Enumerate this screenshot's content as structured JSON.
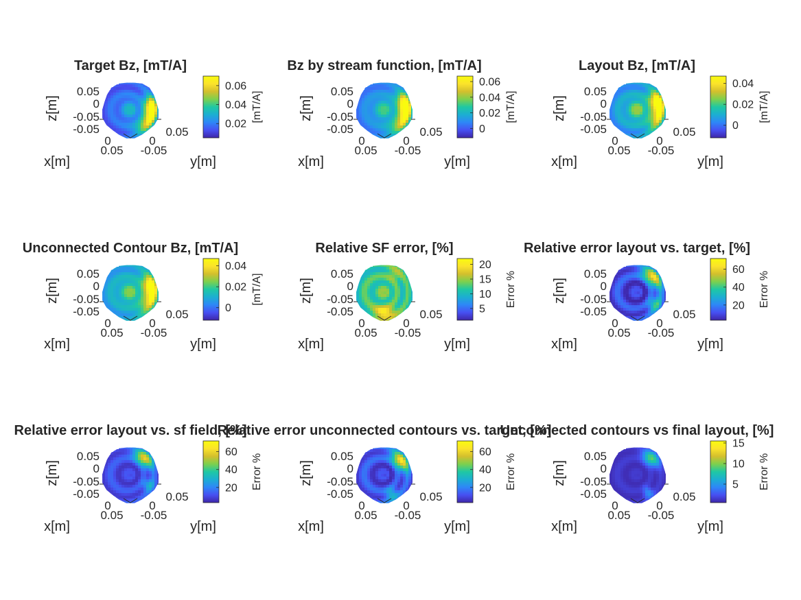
{
  "figure": {
    "background": "#ffffff",
    "colormap": "parula",
    "colormap_stops": [
      "#3e26a8",
      "#4750f2",
      "#2e87f7",
      "#1caed2",
      "#1fc8a3",
      "#7dd04e",
      "#d3bf2d",
      "#fbe32b",
      "#f9fb0e"
    ]
  },
  "chart_data": [
    {
      "type": "heatmap",
      "title": "Target Bz, [mT/A]",
      "xlabel": "x[m]",
      "ylabel": "y[m]",
      "zlabel": "z[m]",
      "x_ticks": [
        "0.05",
        "0",
        "-0.05"
      ],
      "y_ticks": [
        "0",
        "0.05"
      ],
      "z_ticks": [
        "0.05",
        "0",
        "-0.05",
        "-0.05"
      ],
      "colorbar": {
        "label": "[mT/A]",
        "ticks": [
          0.02,
          0.04,
          0.06
        ],
        "tick_labels": [
          "0.02",
          "0.04",
          "0.06"
        ],
        "range": [
          0.005,
          0.07
        ]
      },
      "pattern": {
        "base": 0.16,
        "center": 0.38,
        "bands": [
          {
            "a": 25,
            "l": 0.96,
            "w": 0.55
          },
          {
            "a": -10,
            "l": 0.72,
            "w": 0.3
          }
        ],
        "rings": 0.12
      }
    },
    {
      "type": "heatmap",
      "title": "Bz by stream function, [mT/A]",
      "xlabel": "x[m]",
      "ylabel": "y[m]",
      "zlabel": "z[m]",
      "x_ticks": [
        "0.05",
        "0",
        "-0.05"
      ],
      "y_ticks": [
        "0",
        "0.05"
      ],
      "z_ticks": [
        "0.05",
        "0",
        "-0.05",
        "-0.05"
      ],
      "colorbar": {
        "label": "[mT/A]",
        "ticks": [
          0,
          0.02,
          0.04,
          0.06
        ],
        "tick_labels": [
          "0",
          "0.02",
          "0.04",
          "0.06"
        ],
        "range": [
          -0.012,
          0.067
        ]
      },
      "pattern": {
        "base": 0.24,
        "center": 0.52,
        "bands": [
          {
            "a": 20,
            "l": 0.95,
            "w": 0.6
          },
          {
            "a": -15,
            "l": 0.8,
            "w": 0.35
          }
        ],
        "rings": 0.1
      }
    },
    {
      "type": "heatmap",
      "title": "Layout Bz, [mT/A]",
      "xlabel": "x[m]",
      "ylabel": "y[m]",
      "zlabel": "z[m]",
      "x_ticks": [
        "0.05",
        "0",
        "-0.05"
      ],
      "y_ticks": [
        "0",
        "0.05"
      ],
      "z_ticks": [
        "0.05",
        "0",
        "-0.05",
        "-0.05"
      ],
      "colorbar": {
        "label": "[mT/A]",
        "ticks": [
          0,
          0.02,
          0.04
        ],
        "tick_labels": [
          "0",
          "0.02",
          "0.04"
        ],
        "range": [
          -0.012,
          0.047
        ]
      },
      "pattern": {
        "base": 0.3,
        "center": 0.62,
        "bands": [
          {
            "a": 10,
            "l": 0.98,
            "w": 0.5
          },
          {
            "a": -25,
            "l": 0.85,
            "w": 0.3
          }
        ],
        "rings": 0.14
      }
    },
    {
      "type": "heatmap",
      "title": "Unconnected Contour Bz, [mT/A]",
      "xlabel": "x[m]",
      "ylabel": "y[m]",
      "zlabel": "z[m]",
      "x_ticks": [
        "0.05",
        "0",
        "-0.05"
      ],
      "y_ticks": [
        "0",
        "0.05"
      ],
      "z_ticks": [
        "0.05",
        "0",
        "-0.05",
        "-0.05"
      ],
      "colorbar": {
        "label": "[mT/A]",
        "ticks": [
          0,
          0.02,
          0.04
        ],
        "tick_labels": [
          "0",
          "0.02",
          "0.04"
        ],
        "range": [
          -0.012,
          0.047
        ]
      },
      "pattern": {
        "base": 0.34,
        "center": 0.6,
        "bands": [
          {
            "a": 15,
            "l": 0.95,
            "w": 0.5
          },
          {
            "a": -20,
            "l": 0.85,
            "w": 0.32
          }
        ],
        "rings": 0.12
      }
    },
    {
      "type": "heatmap",
      "title": "Relative SF error, [%]",
      "xlabel": "x[m]",
      "ylabel": "y[m]",
      "zlabel": "z[m]",
      "x_ticks": [
        "0.05",
        "0",
        "-0.05"
      ],
      "y_ticks": [
        "0",
        "0.05"
      ],
      "z_ticks": [
        "0.05",
        "0",
        "-0.05",
        "-0.05"
      ],
      "colorbar": {
        "label": "Error %",
        "ticks": [
          5,
          10,
          15,
          20
        ],
        "tick_labels": [
          "5",
          "10",
          "15",
          "20"
        ],
        "range": [
          1,
          22
        ]
      },
      "pattern": {
        "base": 0.5,
        "center": 0.58,
        "bands": [
          {
            "a": 90,
            "l": 0.98,
            "w": 0.35
          },
          {
            "a": -60,
            "l": 0.7,
            "w": 0.25
          }
        ],
        "rings": 0.2
      }
    },
    {
      "type": "heatmap",
      "title": "Relative error layout vs. target, [%]",
      "xlabel": "x[m]",
      "ylabel": "y[m]",
      "zlabel": "z[m]",
      "x_ticks": [
        "0.05",
        "0",
        "-0.05"
      ],
      "y_ticks": [
        "0",
        "0.05"
      ],
      "z_ticks": [
        "0.05",
        "0",
        "-0.05",
        "-0.05"
      ],
      "colorbar": {
        "label": "Error %",
        "ticks": [
          20,
          40,
          60
        ],
        "tick_labels": [
          "20",
          "40",
          "60"
        ],
        "range": [
          3,
          72
        ]
      },
      "pattern": {
        "base": 0.12,
        "center": 0.05,
        "bands": [
          {
            "a": -45,
            "l": 0.9,
            "w": 0.4
          },
          {
            "a": 35,
            "l": 0.55,
            "w": 0.25
          }
        ],
        "rings": 0.18
      }
    },
    {
      "type": "heatmap",
      "title": "Relative error layout vs. sf field, [%]",
      "xlabel": "x[m]",
      "ylabel": "y[m]",
      "zlabel": "z[m]",
      "x_ticks": [
        "0.05",
        "0",
        "-0.05"
      ],
      "y_ticks": [
        "0",
        "0.05"
      ],
      "z_ticks": [
        "0.05",
        "0",
        "-0.05",
        "-0.05"
      ],
      "colorbar": {
        "label": "Error %",
        "ticks": [
          20,
          40,
          60
        ],
        "tick_labels": [
          "20",
          "40",
          "60"
        ],
        "range": [
          3,
          72
        ]
      },
      "pattern": {
        "base": 0.12,
        "center": 0.08,
        "bands": [
          {
            "a": -50,
            "l": 0.85,
            "w": 0.35
          },
          {
            "a": 30,
            "l": 0.4,
            "w": 0.2
          }
        ],
        "rings": 0.12
      }
    },
    {
      "type": "heatmap",
      "title": "Relative error unconnected contours vs. target, [%]",
      "xlabel": "x[m]",
      "ylabel": "y[m]",
      "zlabel": "z[m]",
      "x_ticks": [
        "0.05",
        "0",
        "-0.05"
      ],
      "y_ticks": [
        "0",
        "0.05"
      ],
      "z_ticks": [
        "0.05",
        "0",
        "-0.05",
        "-0.05"
      ],
      "colorbar": {
        "label": "Error %",
        "ticks": [
          20,
          40,
          60
        ],
        "tick_labels": [
          "20",
          "40",
          "60"
        ],
        "range": [
          3,
          72
        ]
      },
      "pattern": {
        "base": 0.14,
        "center": 0.06,
        "bands": [
          {
            "a": -40,
            "l": 0.92,
            "w": 0.35
          },
          {
            "a": 70,
            "l": 0.45,
            "w": 0.2
          }
        ],
        "rings": 0.16
      }
    },
    {
      "type": "heatmap",
      "title": "Unconnected contours vs final layout, [%]",
      "xlabel": "x[m]",
      "ylabel": "y[m]",
      "zlabel": "z[m]",
      "x_ticks": [
        "0.05",
        "0",
        "-0.05"
      ],
      "y_ticks": [
        "0",
        "0.05"
      ],
      "z_ticks": [
        "0.05",
        "0",
        "-0.05",
        "-0.05"
      ],
      "colorbar": {
        "label": "Error %",
        "ticks": [
          5,
          10,
          15
        ],
        "tick_labels": [
          "5",
          "10",
          "15"
        ],
        "range": [
          0.5,
          15.5
        ]
      },
      "pattern": {
        "base": 0.05,
        "center": 0.04,
        "bands": [
          {
            "a": -50,
            "l": 0.6,
            "w": 0.3
          },
          {
            "a": 60,
            "l": 0.3,
            "w": 0.15
          }
        ],
        "rings": 0.05
      }
    }
  ]
}
